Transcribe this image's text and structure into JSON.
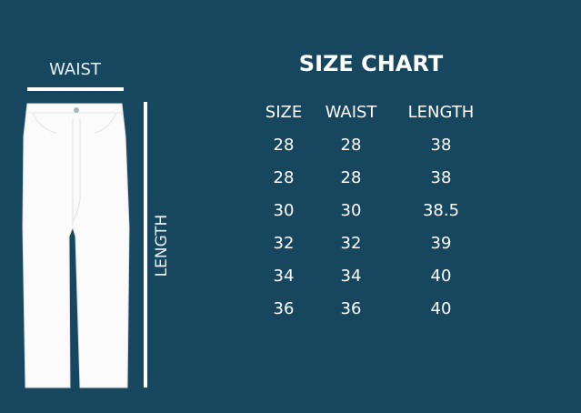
{
  "diagram": {
    "waist_label": "WAIST",
    "length_label": "LENGTH",
    "garment": "pants-illustration"
  },
  "chart": {
    "title": "SIZE CHART",
    "headers": [
      "SIZE",
      "WAIST",
      "LENGTH"
    ],
    "rows": [
      [
        "28",
        "28",
        "38"
      ],
      [
        "28",
        "28",
        "38"
      ],
      [
        "30",
        "30",
        "38.5"
      ],
      [
        "32",
        "32",
        "39"
      ],
      [
        "34",
        "34",
        "40"
      ],
      [
        "36",
        "36",
        "40"
      ]
    ]
  },
  "colors": {
    "background": "#17465f",
    "foreground": "#ffffff"
  }
}
